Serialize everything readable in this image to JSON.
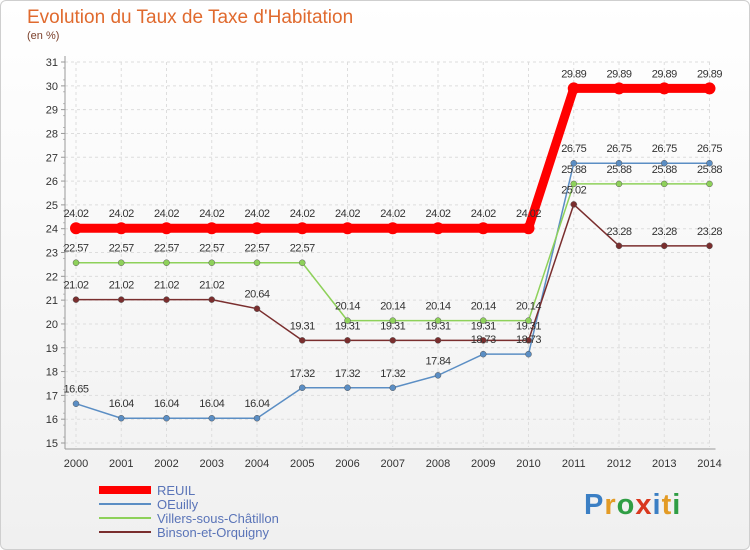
{
  "header": {
    "title": "Evolution du Taux de Taxe d'Habitation",
    "unit": "(en %)"
  },
  "logo_text": "Proxiti",
  "chart_data": {
    "type": "line",
    "title": "Evolution du Taux de Taxe d'Habitation",
    "ylabel": "(en %)",
    "xlabel": "",
    "x": [
      "2000",
      "2001",
      "2002",
      "2003",
      "2004",
      "2005",
      "2006",
      "2007",
      "2008",
      "2009",
      "2010",
      "2011",
      "2012",
      "2013",
      "2014"
    ],
    "y_ticks": [
      "15",
      "16",
      "17",
      "18",
      "19",
      "20",
      "21",
      "22",
      "23",
      "24",
      "25",
      "26",
      "27",
      "28",
      "29",
      "30",
      "31"
    ],
    "ylim": [
      15,
      31
    ],
    "grid": true,
    "legend_position": "bottom-left",
    "series": [
      {
        "name": "REUIL",
        "color": "#ff0000",
        "values": [
          24.02,
          24.02,
          24.02,
          24.02,
          24.02,
          24.02,
          24.02,
          24.02,
          24.02,
          24.02,
          24.02,
          29.89,
          29.89,
          29.89,
          29.89
        ],
        "labels": [
          "24.02",
          "24.02",
          "24.02",
          "24.02",
          "24.02",
          "24.02",
          "24.02",
          "24.02",
          "24.02",
          "24.02",
          "24.02",
          "29.89",
          "29.89",
          "29.89",
          "29.89"
        ]
      },
      {
        "name": "OEuilly",
        "color": "#5b8ec4",
        "values": [
          16.65,
          16.04,
          16.04,
          16.04,
          16.04,
          17.32,
          17.32,
          17.32,
          17.84,
          18.73,
          18.73,
          26.75,
          26.75,
          26.75,
          26.75
        ],
        "labels": [
          "16.65",
          "16.04",
          "16.04",
          "16.04",
          "16.04",
          "17.32",
          "17.32",
          "17.32",
          "17.84",
          "18.73",
          "18.73",
          "26.75",
          "26.75",
          "26.75",
          "26.75"
        ]
      },
      {
        "name": "Villers-sous-Châtillon",
        "color": "#8ed15a",
        "values": [
          22.57,
          22.57,
          22.57,
          22.57,
          22.57,
          22.57,
          20.14,
          20.14,
          20.14,
          20.14,
          20.14,
          25.88,
          25.88,
          25.88,
          25.88
        ],
        "labels": [
          "22.57",
          "22.57",
          "22.57",
          "22.57",
          "22.57",
          "22.57",
          "20.14",
          "20.14",
          "20.14",
          "20.14",
          "20.14",
          "25.88",
          "25.88",
          "25.88",
          "25.88"
        ]
      },
      {
        "name": "Binson-et-Orquigny",
        "color": "#7a2e2e",
        "values": [
          21.02,
          21.02,
          21.02,
          21.02,
          20.64,
          19.31,
          19.31,
          19.31,
          19.31,
          19.31,
          19.31,
          25.02,
          23.28,
          23.28,
          23.28
        ],
        "labels": [
          "21.02",
          "21.02",
          "21.02",
          "21.02",
          "20.64",
          "19.31",
          "19.31",
          "19.31",
          "19.31",
          "19.31",
          "19.31",
          "25.02",
          "23.28",
          "23.28",
          "23.28"
        ]
      }
    ]
  }
}
